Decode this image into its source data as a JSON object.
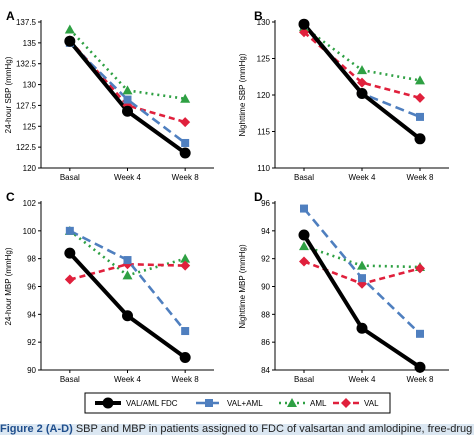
{
  "chart_data": [
    {
      "panel": "A",
      "type": "line",
      "categories": [
        "Basal",
        "Week 4",
        "Week 8"
      ],
      "ylabel": "24-hour SBP (mmHg)",
      "ylim": [
        120,
        137.5
      ],
      "yticks": [
        "137.5",
        "135",
        "132.5",
        "130",
        "127.5",
        "125",
        "122.5",
        "120"
      ],
      "series": [
        {
          "key": "fdc",
          "values": [
            135.2,
            126.8,
            121.8
          ]
        },
        {
          "key": "valaml",
          "values": [
            135.0,
            128.2,
            123.0
          ]
        },
        {
          "key": "aml",
          "values": [
            136.6,
            129.3,
            128.3
          ]
        },
        {
          "key": "val",
          "values": [
            135.3,
            127.5,
            125.5
          ]
        }
      ]
    },
    {
      "panel": "B",
      "type": "line",
      "categories": [
        "Basal",
        "Week 4",
        "Week 8"
      ],
      "ylabel": "Nighttime SBP (mmHg)",
      "ylim": [
        110,
        130
      ],
      "yticks": [
        "130",
        "125",
        "120",
        "115",
        "110"
      ],
      "series": [
        {
          "key": "fdc",
          "values": [
            129.7,
            120.2,
            114.0
          ]
        },
        {
          "key": "valaml",
          "values": [
            129.6,
            120.2,
            117.0
          ]
        },
        {
          "key": "aml",
          "values": [
            129.3,
            123.4,
            122.0
          ]
        },
        {
          "key": "val",
          "values": [
            128.6,
            121.7,
            119.6
          ]
        }
      ]
    },
    {
      "panel": "C",
      "type": "line",
      "categories": [
        "Basal",
        "Week 4",
        "Week 8"
      ],
      "ylabel": "24-hour MBP (mmHg)",
      "ylim": [
        90,
        102
      ],
      "yticks": [
        "102",
        "100",
        "98",
        "96",
        "94",
        "92",
        "90"
      ],
      "series": [
        {
          "key": "fdc",
          "values": [
            98.4,
            93.9,
            90.9
          ]
        },
        {
          "key": "valaml",
          "values": [
            100.0,
            97.9,
            92.8
          ]
        },
        {
          "key": "aml",
          "values": [
            100.0,
            96.8,
            98.0
          ]
        },
        {
          "key": "val",
          "values": [
            96.5,
            97.6,
            97.5
          ]
        }
      ]
    },
    {
      "panel": "D",
      "type": "line",
      "categories": [
        "Basal",
        "Week 4",
        "Week 8"
      ],
      "ylabel": "Nighttime MBP (mmHg)",
      "ylim": [
        84,
        96
      ],
      "yticks": [
        "96",
        "94",
        "92",
        "90",
        "88",
        "86",
        "84"
      ],
      "series": [
        {
          "key": "fdc",
          "values": [
            93.7,
            87.0,
            84.2
          ]
        },
        {
          "key": "valaml",
          "values": [
            95.6,
            90.6,
            86.6
          ]
        },
        {
          "key": "aml",
          "values": [
            92.9,
            91.5,
            91.4
          ]
        },
        {
          "key": "val",
          "values": [
            91.8,
            90.2,
            91.3
          ]
        }
      ]
    }
  ],
  "legend": [
    {
      "key": "fdc",
      "label": "VAL/AML FDC"
    },
    {
      "key": "valaml",
      "label": "VAL+AML"
    },
    {
      "key": "aml",
      "label": "AML"
    },
    {
      "key": "val",
      "label": "VAL"
    }
  ],
  "styles": {
    "fdc": {
      "color": "#000000",
      "marker": "circle",
      "dash": "solid"
    },
    "valaml": {
      "color": "#4f7fbf",
      "marker": "square",
      "dash": "long-dash"
    },
    "aml": {
      "color": "#2ea043",
      "marker": "triangle",
      "dash": "dotted"
    },
    "val": {
      "color": "#e0203c",
      "marker": "diamond",
      "dash": "dash"
    }
  },
  "caption": {
    "figure_label": "Figure 2",
    "part_label": "(A-D)",
    "text": "SBP and MBP in patients assigned to FDC of valsartan and amlodipine, free-drug"
  }
}
